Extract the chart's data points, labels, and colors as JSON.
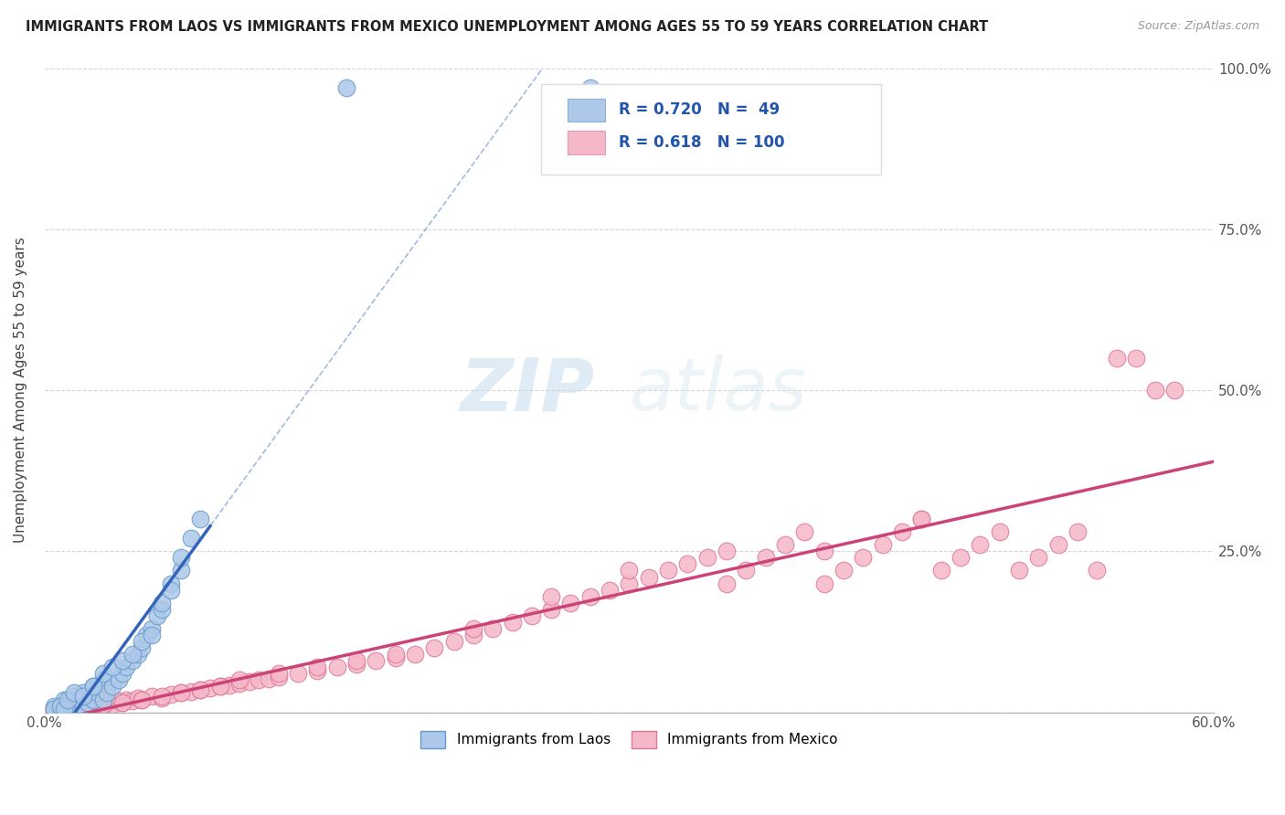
{
  "title": "IMMIGRANTS FROM LAOS VS IMMIGRANTS FROM MEXICO UNEMPLOYMENT AMONG AGES 55 TO 59 YEARS CORRELATION CHART",
  "source": "Source: ZipAtlas.com",
  "ylabel": "Unemployment Among Ages 55 to 59 years",
  "xlim": [
    0.0,
    0.6
  ],
  "ylim": [
    0.0,
    1.0
  ],
  "laos_color": "#adc8e8",
  "laos_edge_color": "#6699cc",
  "laos_line_color": "#3366bb",
  "mexico_color": "#f5b8c8",
  "mexico_edge_color": "#dd7799",
  "mexico_line_color": "#cc4477",
  "laos_R": 0.72,
  "laos_N": 49,
  "mexico_R": 0.618,
  "mexico_N": 100,
  "watermark_zip": "ZIP",
  "watermark_atlas": "atlas",
  "background_color": "#ffffff",
  "laos_x": [
    0.005,
    0.008,
    0.01,
    0.012,
    0.015,
    0.015,
    0.018,
    0.02,
    0.02,
    0.022,
    0.025,
    0.025,
    0.027,
    0.03,
    0.03,
    0.032,
    0.035,
    0.038,
    0.04,
    0.042,
    0.045,
    0.048,
    0.05,
    0.052,
    0.055,
    0.058,
    0.06,
    0.065,
    0.07,
    0.075,
    0.005,
    0.008,
    0.01,
    0.012,
    0.015,
    0.02,
    0.025,
    0.03,
    0.035,
    0.04,
    0.045,
    0.05,
    0.055,
    0.06,
    0.065,
    0.07,
    0.08,
    0.155,
    0.28
  ],
  "laos_y": [
    0.01,
    0.005,
    0.02,
    0.015,
    0.01,
    0.025,
    0.02,
    0.01,
    0.03,
    0.015,
    0.02,
    0.04,
    0.03,
    0.02,
    0.05,
    0.03,
    0.04,
    0.05,
    0.06,
    0.07,
    0.08,
    0.09,
    0.1,
    0.12,
    0.13,
    0.15,
    0.16,
    0.2,
    0.22,
    0.27,
    0.005,
    0.01,
    0.005,
    0.02,
    0.03,
    0.025,
    0.04,
    0.06,
    0.07,
    0.08,
    0.09,
    0.11,
    0.12,
    0.17,
    0.19,
    0.24,
    0.3,
    0.97,
    0.97
  ],
  "mexico_x": [
    0.005,
    0.008,
    0.01,
    0.012,
    0.015,
    0.018,
    0.02,
    0.022,
    0.025,
    0.028,
    0.03,
    0.032,
    0.035,
    0.038,
    0.04,
    0.042,
    0.045,
    0.048,
    0.05,
    0.055,
    0.06,
    0.065,
    0.07,
    0.075,
    0.08,
    0.085,
    0.09,
    0.095,
    0.1,
    0.105,
    0.11,
    0.115,
    0.12,
    0.13,
    0.14,
    0.15,
    0.16,
    0.17,
    0.18,
    0.19,
    0.2,
    0.21,
    0.22,
    0.23,
    0.24,
    0.25,
    0.26,
    0.27,
    0.28,
    0.29,
    0.3,
    0.31,
    0.32,
    0.33,
    0.34,
    0.35,
    0.36,
    0.37,
    0.38,
    0.39,
    0.4,
    0.41,
    0.42,
    0.43,
    0.44,
    0.45,
    0.46,
    0.47,
    0.48,
    0.49,
    0.5,
    0.51,
    0.52,
    0.53,
    0.54,
    0.55,
    0.56,
    0.57,
    0.58,
    0.005,
    0.01,
    0.02,
    0.03,
    0.04,
    0.05,
    0.06,
    0.07,
    0.08,
    0.09,
    0.1,
    0.12,
    0.14,
    0.16,
    0.18,
    0.22,
    0.26,
    0.3,
    0.35,
    0.4,
    0.45
  ],
  "mexico_y": [
    0.005,
    0.008,
    0.005,
    0.01,
    0.008,
    0.01,
    0.008,
    0.012,
    0.01,
    0.015,
    0.01,
    0.015,
    0.012,
    0.018,
    0.015,
    0.02,
    0.018,
    0.022,
    0.02,
    0.025,
    0.022,
    0.028,
    0.03,
    0.032,
    0.035,
    0.038,
    0.04,
    0.042,
    0.045,
    0.048,
    0.05,
    0.052,
    0.055,
    0.06,
    0.065,
    0.07,
    0.075,
    0.08,
    0.085,
    0.09,
    0.1,
    0.11,
    0.12,
    0.13,
    0.14,
    0.15,
    0.16,
    0.17,
    0.18,
    0.19,
    0.2,
    0.21,
    0.22,
    0.23,
    0.24,
    0.25,
    0.22,
    0.24,
    0.26,
    0.28,
    0.2,
    0.22,
    0.24,
    0.26,
    0.28,
    0.3,
    0.22,
    0.24,
    0.26,
    0.28,
    0.22,
    0.24,
    0.26,
    0.28,
    0.22,
    0.55,
    0.55,
    0.5,
    0.5,
    0.005,
    0.01,
    0.005,
    0.012,
    0.015,
    0.02,
    0.025,
    0.03,
    0.035,
    0.04,
    0.05,
    0.06,
    0.07,
    0.08,
    0.09,
    0.13,
    0.18,
    0.22,
    0.2,
    0.25,
    0.3
  ]
}
